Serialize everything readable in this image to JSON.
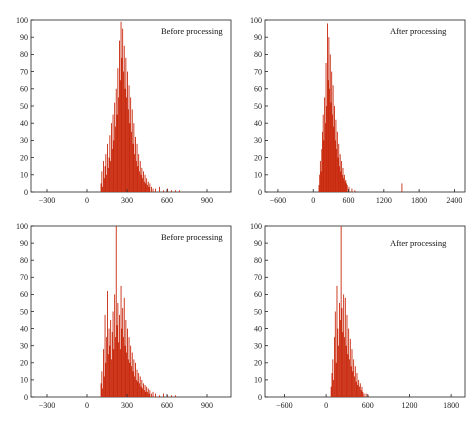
{
  "colors": {
    "bars": "#c92a0e",
    "axis": "#222222"
  },
  "chart_data": [
    {
      "type": "bar",
      "title": "Before processing",
      "x_ticks": [
        -300,
        0,
        300,
        600,
        900
      ],
      "x_tick_labels": [
        "−300",
        "0",
        "300",
        "600",
        "900"
      ],
      "xlim": [
        -420,
        1080
      ],
      "y_ticks": [
        0,
        10,
        20,
        30,
        40,
        50,
        60,
        70,
        80,
        90,
        100
      ],
      "y_tick_labels": [
        "0",
        "10",
        "20",
        "30",
        "40",
        "50",
        "60",
        "70",
        "80",
        "90",
        "100"
      ],
      "ylim": [
        0,
        100
      ],
      "grid": false,
      "bin_width": 6,
      "x": [
        102,
        108,
        114,
        120,
        126,
        132,
        138,
        144,
        150,
        156,
        162,
        168,
        174,
        180,
        186,
        192,
        198,
        204,
        210,
        216,
        222,
        228,
        234,
        240,
        246,
        252,
        258,
        264,
        270,
        276,
        282,
        288,
        294,
        300,
        306,
        312,
        318,
        324,
        330,
        336,
        342,
        348,
        354,
        360,
        366,
        372,
        378,
        384,
        390,
        396,
        402,
        408,
        414,
        420,
        426,
        432,
        438,
        444,
        450,
        456,
        462,
        468,
        480,
        492,
        510,
        540,
        570,
        600,
        630,
        660,
        690
      ],
      "values": [
        5,
        12,
        3,
        18,
        8,
        15,
        22,
        10,
        28,
        14,
        20,
        33,
        18,
        40,
        25,
        45,
        30,
        52,
        38,
        60,
        45,
        72,
        55,
        88,
        65,
        99,
        78,
        95,
        70,
        85,
        60,
        78,
        55,
        70,
        48,
        62,
        40,
        55,
        35,
        48,
        28,
        40,
        22,
        32,
        18,
        28,
        15,
        22,
        12,
        18,
        10,
        14,
        8,
        12,
        6,
        10,
        5,
        8,
        4,
        6,
        3,
        5,
        3,
        2,
        2,
        3,
        1,
        2,
        1,
        1,
        1
      ]
    },
    {
      "type": "bar",
      "title": "After processing",
      "x_ticks": [
        -600,
        0,
        600,
        1200,
        1800,
        2400
      ],
      "x_tick_labels": [
        "−600",
        "0",
        "600",
        "1200",
        "1800",
        "2400"
      ],
      "xlim": [
        -820,
        2580
      ],
      "y_ticks": [
        0,
        10,
        20,
        30,
        40,
        50,
        60,
        70,
        80,
        90,
        100
      ],
      "y_tick_labels": [
        "0",
        "10",
        "20",
        "30",
        "40",
        "50",
        "60",
        "70",
        "80",
        "90",
        "100"
      ],
      "ylim": [
        0,
        100
      ],
      "grid": false,
      "bin_width": 12,
      "x": [
        90,
        102,
        114,
        126,
        138,
        150,
        162,
        174,
        186,
        198,
        210,
        222,
        234,
        246,
        258,
        270,
        282,
        294,
        306,
        318,
        330,
        342,
        354,
        366,
        378,
        390,
        402,
        414,
        426,
        438,
        450,
        462,
        474,
        486,
        498,
        510,
        522,
        534,
        546,
        558,
        570,
        600,
        650,
        700,
        1500
      ],
      "values": [
        4,
        10,
        18,
        12,
        25,
        35,
        45,
        30,
        55,
        40,
        75,
        50,
        98,
        65,
        90,
        60,
        80,
        52,
        70,
        45,
        62,
        38,
        50,
        30,
        42,
        25,
        35,
        20,
        28,
        15,
        22,
        12,
        18,
        10,
        14,
        8,
        10,
        6,
        7,
        5,
        4,
        3,
        2,
        1,
        5
      ]
    },
    {
      "type": "bar",
      "title": "Before processing",
      "x_ticks": [
        -300,
        0,
        300,
        600,
        900
      ],
      "x_tick_labels": [
        "−300",
        "0",
        "300",
        "600",
        "900"
      ],
      "xlim": [
        -420,
        1080
      ],
      "y_ticks": [
        0,
        10,
        20,
        30,
        40,
        50,
        60,
        70,
        80,
        90,
        100
      ],
      "y_tick_labels": [
        "0",
        "10",
        "20",
        "30",
        "40",
        "50",
        "60",
        "70",
        "80",
        "90",
        "100"
      ],
      "ylim": [
        0,
        100
      ],
      "grid": false,
      "bin_width": 6,
      "x": [
        102,
        108,
        114,
        120,
        126,
        132,
        138,
        144,
        150,
        156,
        162,
        168,
        174,
        180,
        186,
        192,
        198,
        204,
        210,
        216,
        222,
        228,
        234,
        240,
        246,
        252,
        258,
        264,
        270,
        276,
        282,
        288,
        294,
        300,
        306,
        312,
        318,
        324,
        330,
        336,
        342,
        348,
        354,
        360,
        366,
        372,
        378,
        384,
        390,
        396,
        402,
        408,
        414,
        420,
        426,
        432,
        438,
        444,
        450,
        456,
        462,
        468,
        480,
        492,
        510,
        540,
        570,
        600,
        630,
        660
      ],
      "values": [
        8,
        15,
        5,
        28,
        12,
        48,
        20,
        35,
        62,
        25,
        40,
        30,
        45,
        22,
        38,
        50,
        28,
        60,
        35,
        100,
        42,
        55,
        32,
        48,
        28,
        65,
        40,
        52,
        35,
        58,
        30,
        45,
        26,
        40,
        22,
        35,
        20,
        30,
        18,
        26,
        15,
        22,
        12,
        20,
        10,
        16,
        9,
        14,
        8,
        12,
        6,
        10,
        5,
        8,
        4,
        7,
        3,
        6,
        3,
        5,
        2,
        4,
        2,
        3,
        2,
        1,
        2,
        1,
        1,
        1
      ]
    },
    {
      "type": "bar",
      "title": "After processing",
      "x_ticks": [
        -600,
        0,
        600,
        1200,
        1800
      ],
      "x_tick_labels": [
        "−600",
        "0",
        "600",
        "1200",
        "1800"
      ],
      "xlim": [
        -880,
        2000
      ],
      "y_ticks": [
        0,
        10,
        20,
        30,
        40,
        50,
        60,
        70,
        80,
        90,
        100
      ],
      "y_tick_labels": [
        "0",
        "10",
        "20",
        "30",
        "40",
        "50",
        "60",
        "70",
        "80",
        "90",
        "100"
      ],
      "ylim": [
        0,
        100
      ],
      "grid": false,
      "bin_width": 12,
      "x": [
        66,
        78,
        90,
        102,
        114,
        126,
        138,
        150,
        162,
        174,
        186,
        198,
        210,
        222,
        234,
        246,
        258,
        270,
        282,
        294,
        306,
        318,
        330,
        342,
        354,
        366,
        378,
        390,
        402,
        414,
        426,
        438,
        450,
        462,
        474,
        486,
        498,
        510,
        522,
        540,
        570,
        600
      ],
      "values": [
        6,
        14,
        22,
        10,
        35,
        50,
        20,
        65,
        40,
        30,
        55,
        45,
        100,
        52,
        38,
        60,
        35,
        58,
        30,
        48,
        25,
        40,
        22,
        34,
        18,
        28,
        15,
        22,
        12,
        18,
        9,
        14,
        7,
        10,
        6,
        8,
        4,
        6,
        3,
        2,
        2,
        1
      ]
    }
  ]
}
